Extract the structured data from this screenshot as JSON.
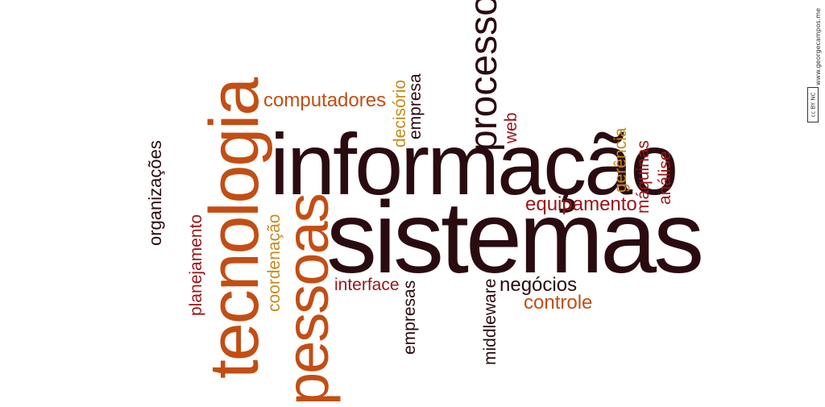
{
  "colors": {
    "dark": "#2a0c10",
    "orange": "#c24e14",
    "red": "#9a1418",
    "gold": "#c68a1a"
  },
  "cloud": {
    "informacao": "informação",
    "sistemas": "sistemas",
    "tecnologia": "tecnologia",
    "pessoas": "pessoas",
    "processo": "processo",
    "computadores": "computadores",
    "decisorio": "decisório",
    "empresa": "empresa",
    "web": "web",
    "gerencia": "gerência",
    "maquinas": "máquinas",
    "analise": "análise",
    "equipamento": "equipamento",
    "organizacoes": "organizações",
    "planejamento": "planejamento",
    "coordenacao": "coordenação",
    "interface": "interface",
    "empresas": "empresas",
    "middleware": "middleware",
    "negocios": "negócios",
    "controle": "controle"
  },
  "credit": {
    "site": "www.georgecampos.me",
    "license": "cc BY NC"
  }
}
